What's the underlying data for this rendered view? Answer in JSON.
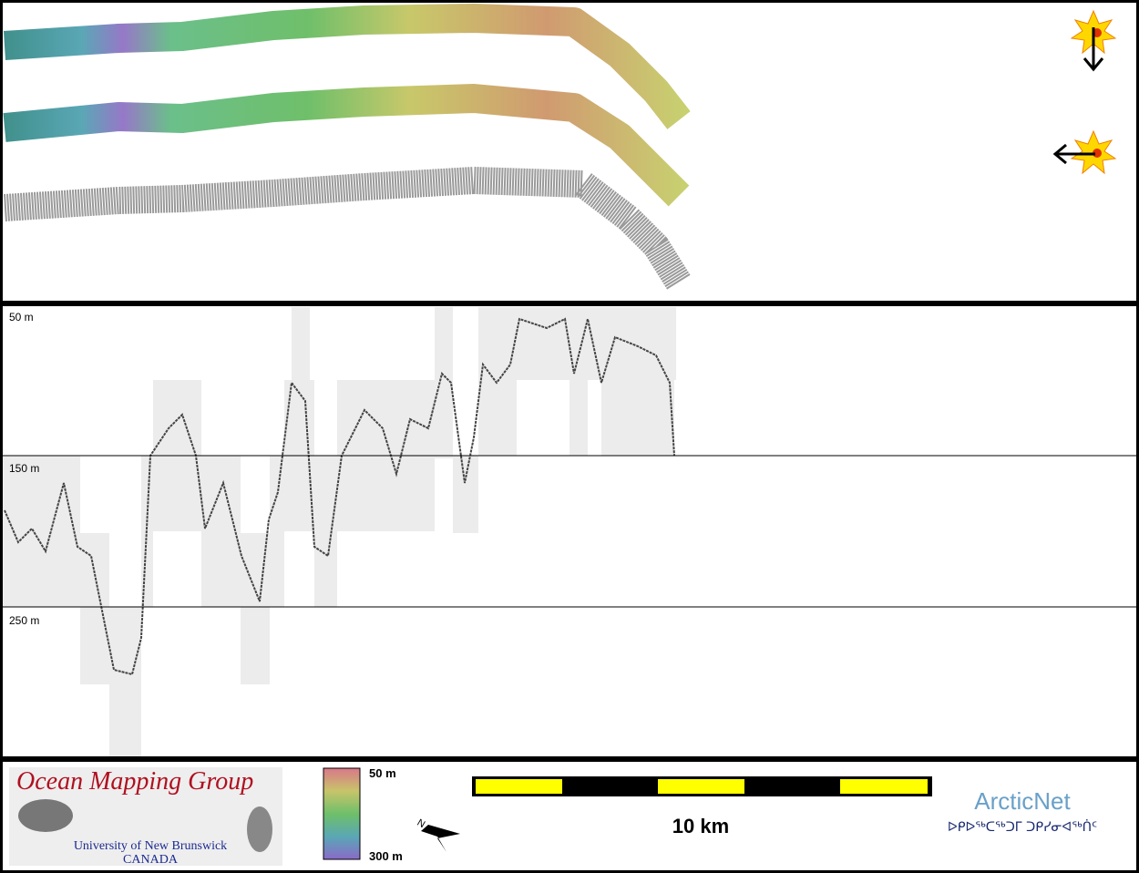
{
  "profile": {
    "depth_labels": [
      "50 m",
      "150 m",
      "250 m"
    ]
  },
  "footer": {
    "logo_title": "Ocean Mapping Group",
    "logo_university": "University of New Brunswick",
    "logo_country": "CANADA",
    "colorbar_top": "50 m",
    "colorbar_bottom": "300 m",
    "compass": "N",
    "scale_label": "10 km",
    "partner": "ArcticNet",
    "partner_subtitle": "ᐅᑭᐅᖅᑕᖅᑐᒥ ᑐᑭᓯᓂᐊᖅᑏᑦ"
  }
}
